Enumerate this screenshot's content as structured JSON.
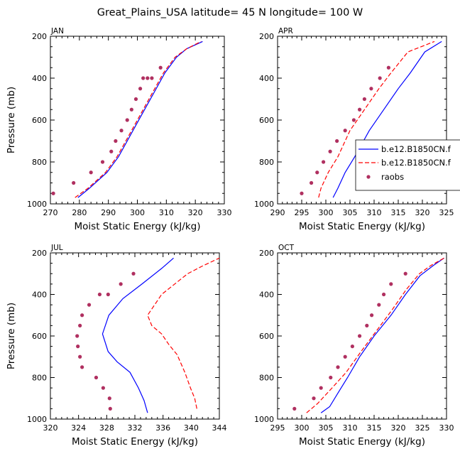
{
  "title": "Great_Plains_USA  latitude= 45 N longitude= 100 W",
  "colors": {
    "model1": "#0000ff",
    "model2": "#ff0000",
    "raobs": "#b03060",
    "axis": "#000000"
  },
  "legend": {
    "placement": "right of APR panel",
    "entries": [
      "b.e12.B1850CN.f",
      "b.e12.B1850CN.f",
      "raobs"
    ]
  },
  "chart_data": [
    {
      "type": "line",
      "panel": "JAN",
      "xlabel": "Moist Static Energy (kJ/kg)",
      "ylabel": "Pressure (mb)",
      "xlim": [
        270,
        330
      ],
      "ylim": [
        1000,
        200
      ],
      "xticks": [
        270,
        280,
        290,
        300,
        310,
        320,
        330
      ],
      "yticks": [
        200,
        400,
        600,
        800,
        1000
      ],
      "series": [
        {
          "name": "b.e12.B1850CN.f",
          "style": "solid",
          "color": "#0000ff",
          "x": [
            279.5,
            283.5,
            289.5,
            293.5,
            297.5,
            301.5,
            305.5,
            309.5,
            313.5,
            317,
            322.5
          ],
          "y": [
            970,
            925,
            850,
            775,
            675,
            575,
            475,
            375,
            300,
            260,
            225
          ]
        },
        {
          "name": "b.e12.B1850CN.f",
          "style": "dashed",
          "color": "#ff0000",
          "x": [
            278.5,
            283,
            289,
            293,
            297,
            301,
            305,
            309,
            313,
            317,
            322
          ],
          "y": [
            970,
            925,
            850,
            775,
            675,
            575,
            475,
            375,
            300,
            260,
            225
          ]
        },
        {
          "name": "raobs",
          "style": "markers",
          "color": "#b03060",
          "x": [
            271,
            278,
            284,
            288,
            291,
            292.5,
            294.5,
            296.5,
            298,
            299.5,
            301,
            302,
            303.5,
            305,
            308
          ],
          "y": [
            950,
            900,
            850,
            800,
            750,
            700,
            650,
            600,
            550,
            500,
            450,
            400,
            400,
            400,
            350
          ]
        }
      ]
    },
    {
      "type": "line",
      "panel": "APR",
      "xlabel": "Moist Static Energy (kJ/kg)",
      "ylabel": "",
      "xlim": [
        290,
        325
      ],
      "ylim": [
        1000,
        200
      ],
      "xticks": [
        290,
        295,
        300,
        305,
        310,
        315,
        320,
        325
      ],
      "yticks": [
        200,
        400,
        600,
        800,
        1000
      ],
      "series": [
        {
          "name": "b.e12.B1850CN.f",
          "style": "solid",
          "color": "#0000ff",
          "x": [
            301.5,
            302.5,
            304,
            306,
            309,
            312,
            315,
            317.5,
            320.5,
            324
          ],
          "y": [
            970,
            925,
            850,
            775,
            650,
            550,
            450,
            375,
            275,
            225
          ]
        },
        {
          "name": "b.e12.B1850CN.f",
          "style": "dashed",
          "color": "#ff0000",
          "x": [
            298.5,
            299,
            300.5,
            302.5,
            305,
            308,
            311,
            313.5,
            317,
            322.5
          ],
          "y": [
            970,
            925,
            850,
            775,
            650,
            550,
            450,
            375,
            275,
            225
          ]
        },
        {
          "name": "raobs",
          "style": "markers",
          "color": "#b03060",
          "x": [
            295,
            297,
            298.2,
            299.5,
            300.9,
            302.3,
            304,
            305.8,
            307,
            308,
            309.4,
            311.2,
            313
          ],
          "y": [
            950,
            900,
            850,
            800,
            750,
            700,
            650,
            600,
            550,
            500,
            450,
            400,
            350
          ]
        }
      ]
    },
    {
      "type": "line",
      "panel": "JUL",
      "xlabel": "Moist Static Energy (kJ/kg)",
      "ylabel": "Pressure (mb)",
      "xlim": [
        320,
        344
      ],
      "ylim": [
        1000,
        200
      ],
      "xticks": [
        320,
        324,
        328,
        332,
        336,
        340,
        344
      ],
      "yticks": [
        200,
        400,
        600,
        800,
        1000
      ],
      "series": [
        {
          "name": "b.e12.B1850CN.f",
          "style": "solid",
          "color": "#0000ff",
          "x": [
            333.8,
            333.3,
            332.5,
            331.3,
            329.5,
            328.2,
            327.4,
            328.3,
            330.3,
            333,
            335.8,
            337.5
          ],
          "y": [
            970,
            910,
            850,
            775,
            725,
            675,
            590,
            500,
            420,
            350,
            275,
            225
          ]
        },
        {
          "name": "b.e12.B1850CN.f",
          "style": "dashed",
          "color": "#ff0000",
          "x": [
            340.8,
            340.5,
            339.9,
            339.1,
            338,
            336.8,
            335.8,
            334.4,
            333.8,
            335.8,
            339.5,
            341.5,
            344
          ],
          "y": [
            950,
            900,
            850,
            775,
            690,
            640,
            590,
            550,
            500,
            400,
            300,
            265,
            225
          ]
        },
        {
          "name": "raobs",
          "style": "markers",
          "color": "#b03060",
          "x": [
            328.5,
            328.4,
            327.5,
            326.5,
            324.5,
            324.2,
            323.9,
            323.8,
            324.2,
            324.5,
            325.5,
            327,
            328.2,
            330,
            331.8
          ],
          "y": [
            950,
            900,
            850,
            800,
            750,
            700,
            650,
            600,
            550,
            500,
            450,
            400,
            400,
            350,
            300
          ]
        }
      ]
    },
    {
      "type": "line",
      "panel": "OCT",
      "xlabel": "Moist Static Energy (kJ/kg)",
      "ylabel": "",
      "xlim": [
        295,
        330
      ],
      "ylim": [
        1000,
        200
      ],
      "xticks": [
        295,
        300,
        305,
        310,
        315,
        320,
        325,
        330
      ],
      "yticks": [
        200,
        400,
        600,
        800,
        1000
      ],
      "series": [
        {
          "name": "b.e12.B1850CN.f",
          "style": "solid",
          "color": "#0000ff",
          "x": [
            304,
            305.8,
            307.5,
            309.5,
            312,
            315,
            318.5,
            321.5,
            324.5,
            327.3,
            329.5
          ],
          "y": [
            970,
            940,
            875,
            800,
            700,
            600,
            500,
            400,
            310,
            260,
            225
          ]
        },
        {
          "name": "b.e12.B1850CN.f",
          "style": "dashed",
          "color": "#ff0000",
          "x": [
            301,
            303.3,
            306.3,
            309.2,
            312.3,
            315.5,
            318.7,
            321.7,
            324.4,
            326.8,
            329.5
          ],
          "y": [
            970,
            925,
            850,
            775,
            675,
            575,
            475,
            375,
            300,
            260,
            225
          ]
        },
        {
          "name": "raobs",
          "style": "markers",
          "color": "#b03060",
          "x": [
            298.5,
            302.5,
            304,
            306,
            307.5,
            309,
            310.5,
            312,
            313.5,
            314.5,
            316,
            317,
            318.5,
            321.5
          ],
          "y": [
            950,
            900,
            850,
            800,
            750,
            700,
            650,
            600,
            550,
            500,
            450,
            400,
            350,
            300
          ]
        }
      ]
    }
  ]
}
